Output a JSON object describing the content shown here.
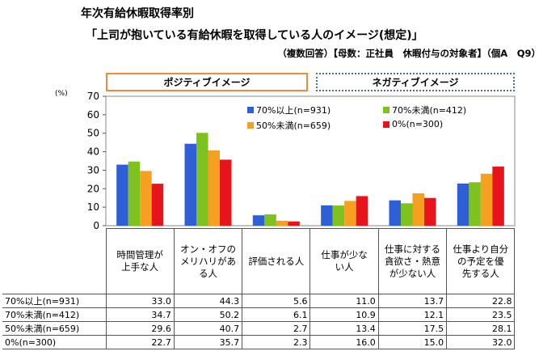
{
  "header": {
    "title": "年次有給休暇取得率別",
    "subtitle": "「上司が抱いている有給休暇を取得している人のイメージ(想定)」",
    "note": "（複数回答）【母数：正社員　休暇付与の対象者】（個A　Q9）"
  },
  "groups": {
    "positive": "ポジティブイメージ",
    "negative": "ネガティブイメージ"
  },
  "chart_data": {
    "type": "bar",
    "y_unit": "(%)",
    "ylim": [
      0,
      70
    ],
    "yticks": [
      0,
      10,
      20,
      30,
      40,
      50,
      60,
      70
    ],
    "categories": [
      [
        "時間管理が",
        "上手な人"
      ],
      [
        "オン・オフの",
        "メリハリがあ",
        "る人"
      ],
      [
        "評価される人"
      ],
      [
        "仕事が少な",
        "い人"
      ],
      [
        "仕事に対する",
        "貪欲さ・熱意",
        "が少ない人"
      ],
      [
        "仕事より自分",
        "の予定を優",
        "先する人"
      ]
    ],
    "series": [
      {
        "name": "70%以上(n=931)",
        "color": "#2e5fd6",
        "values": [
          33.0,
          44.3,
          5.6,
          11.0,
          13.7,
          22.8
        ]
      },
      {
        "name": "70%未満(n=412)",
        "color": "#7dc21e",
        "values": [
          34.7,
          50.2,
          6.1,
          10.9,
          12.1,
          23.5
        ]
      },
      {
        "name": "50%未満(n=659)",
        "color": "#f5a021",
        "values": [
          29.6,
          40.7,
          2.7,
          13.4,
          17.5,
          28.1
        ]
      },
      {
        "name": "0%(n=300)",
        "color": "#e8141c",
        "values": [
          22.7,
          35.7,
          2.3,
          16.0,
          15.0,
          32.0
        ]
      }
    ]
  }
}
